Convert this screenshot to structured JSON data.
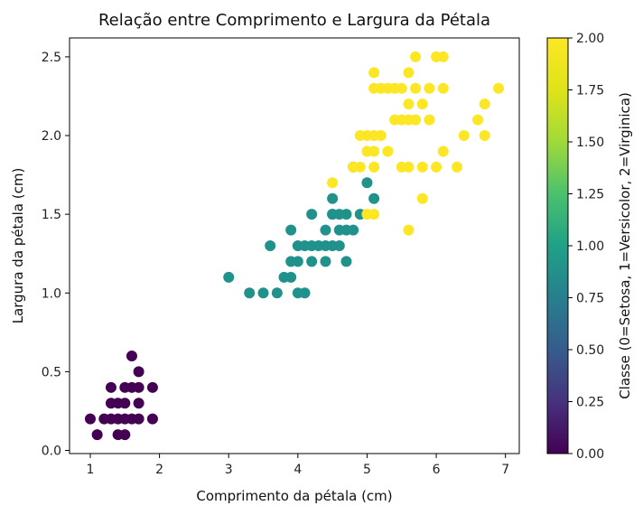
{
  "chart_data": {
    "type": "scatter",
    "title": "Relação entre Comprimento e Largura da Pétala",
    "xlabel": "Comprimento da pétala (cm)",
    "ylabel": "Largura da pétala (cm)",
    "xlim": [
      0.7,
      7.2
    ],
    "ylim": [
      -0.02,
      2.62
    ],
    "xticks": [
      "1",
      "2",
      "3",
      "4",
      "5",
      "6",
      "7"
    ],
    "yticks": [
      "0.0",
      "0.5",
      "1.0",
      "1.5",
      "2.0",
      "2.5"
    ],
    "grid": false,
    "colormap": "viridis",
    "colorbar": {
      "label": "Classe (0=Setosa, 1=Versicolor, 2=Virginica)",
      "range": [
        0,
        2
      ],
      "ticks": [
        "0.00",
        "0.25",
        "0.50",
        "0.75",
        "1.00",
        "1.25",
        "1.50",
        "1.75",
        "2.00"
      ]
    },
    "colors": {
      "0": "#440154",
      "1": "#21918c",
      "2": "#fde725"
    },
    "series": [
      {
        "class_value": 0,
        "points": [
          [
            1.0,
            0.2
          ],
          [
            1.1,
            0.1
          ],
          [
            1.2,
            0.2
          ],
          [
            1.3,
            0.2
          ],
          [
            1.3,
            0.3
          ],
          [
            1.3,
            0.4
          ],
          [
            1.4,
            0.1
          ],
          [
            1.4,
            0.2
          ],
          [
            1.4,
            0.3
          ],
          [
            1.5,
            0.1
          ],
          [
            1.5,
            0.2
          ],
          [
            1.5,
            0.3
          ],
          [
            1.5,
            0.4
          ],
          [
            1.6,
            0.2
          ],
          [
            1.6,
            0.4
          ],
          [
            1.6,
            0.6
          ],
          [
            1.7,
            0.2
          ],
          [
            1.7,
            0.3
          ],
          [
            1.7,
            0.4
          ],
          [
            1.7,
            0.5
          ],
          [
            1.9,
            0.2
          ],
          [
            1.9,
            0.4
          ]
        ]
      },
      {
        "class_value": 1,
        "points": [
          [
            3.0,
            1.1
          ],
          [
            3.3,
            1.0
          ],
          [
            3.5,
            1.0
          ],
          [
            3.6,
            1.3
          ],
          [
            3.7,
            1.0
          ],
          [
            3.8,
            1.1
          ],
          [
            3.9,
            1.1
          ],
          [
            3.9,
            1.2
          ],
          [
            3.9,
            1.4
          ],
          [
            4.0,
            1.0
          ],
          [
            4.0,
            1.2
          ],
          [
            4.0,
            1.3
          ],
          [
            4.1,
            1.0
          ],
          [
            4.1,
            1.3
          ],
          [
            4.2,
            1.2
          ],
          [
            4.2,
            1.3
          ],
          [
            4.2,
            1.5
          ],
          [
            4.3,
            1.3
          ],
          [
            4.4,
            1.2
          ],
          [
            4.4,
            1.3
          ],
          [
            4.4,
            1.4
          ],
          [
            4.5,
            1.3
          ],
          [
            4.5,
            1.5
          ],
          [
            4.6,
            1.3
          ],
          [
            4.6,
            1.4
          ],
          [
            4.6,
            1.5
          ],
          [
            4.7,
            1.2
          ],
          [
            4.7,
            1.4
          ],
          [
            4.7,
            1.5
          ],
          [
            4.8,
            1.4
          ],
          [
            4.8,
            1.8
          ],
          [
            4.9,
            1.5
          ],
          [
            5.0,
            1.7
          ],
          [
            5.1,
            1.6
          ],
          [
            4.5,
            1.6
          ],
          [
            4.5,
            1.5
          ]
        ]
      },
      {
        "class_value": 2,
        "points": [
          [
            4.5,
            1.7
          ],
          [
            4.8,
            1.8
          ],
          [
            4.9,
            1.8
          ],
          [
            4.9,
            2.0
          ],
          [
            5.0,
            1.5
          ],
          [
            5.0,
            1.9
          ],
          [
            5.0,
            2.0
          ],
          [
            5.1,
            1.5
          ],
          [
            5.1,
            1.8
          ],
          [
            5.1,
            1.9
          ],
          [
            5.1,
            2.0
          ],
          [
            5.1,
            2.3
          ],
          [
            5.1,
            2.4
          ],
          [
            5.2,
            2.0
          ],
          [
            5.2,
            2.3
          ],
          [
            5.3,
            1.9
          ],
          [
            5.3,
            2.3
          ],
          [
            5.4,
            2.1
          ],
          [
            5.4,
            2.3
          ],
          [
            5.5,
            1.8
          ],
          [
            5.5,
            2.1
          ],
          [
            5.5,
            2.3
          ],
          [
            5.6,
            1.4
          ],
          [
            5.6,
            1.8
          ],
          [
            5.6,
            2.1
          ],
          [
            5.6,
            2.2
          ],
          [
            5.6,
            2.4
          ],
          [
            5.7,
            2.1
          ],
          [
            5.7,
            2.3
          ],
          [
            5.7,
            2.5
          ],
          [
            5.8,
            1.6
          ],
          [
            5.8,
            1.8
          ],
          [
            5.8,
            2.2
          ],
          [
            5.9,
            2.1
          ],
          [
            5.9,
            2.3
          ],
          [
            6.0,
            1.8
          ],
          [
            6.0,
            2.5
          ],
          [
            6.1,
            1.9
          ],
          [
            6.1,
            2.3
          ],
          [
            6.1,
            2.5
          ],
          [
            6.3,
            1.8
          ],
          [
            6.4,
            2.0
          ],
          [
            6.6,
            2.1
          ],
          [
            6.7,
            2.0
          ],
          [
            6.7,
            2.2
          ],
          [
            6.9,
            2.3
          ]
        ]
      }
    ]
  }
}
